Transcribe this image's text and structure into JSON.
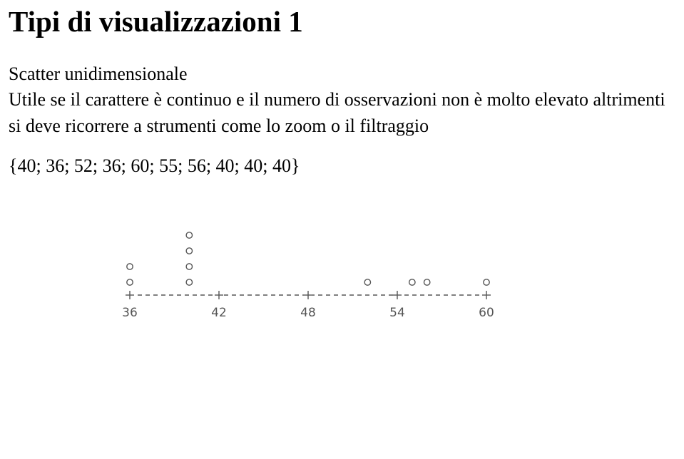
{
  "title": "Tipi di visualizzazioni 1",
  "subtitle": "Scatter unidimensionale",
  "body_line1": "Utile se il carattere è continuo e il numero di osservazioni non è molto elevato altrimenti",
  "body_line2": "si deve ricorrere a strumenti come lo zoom o il filtraggio",
  "dataset_label": "{40; 36; 52; 36; 60; 55; 56; 40; 40; 40}",
  "chart": {
    "type": "scatter-1d",
    "values": [
      40,
      36,
      52,
      36,
      60,
      55,
      56,
      40,
      40,
      40
    ],
    "xlim": [
      36,
      60
    ],
    "xticks": [
      36,
      42,
      48,
      54,
      60
    ],
    "axis_color": "#555555",
    "point_color": "#555555",
    "tick_font_size": 17,
    "point_radius": 4.2,
    "background": "#ffffff",
    "dash": "6 5"
  }
}
